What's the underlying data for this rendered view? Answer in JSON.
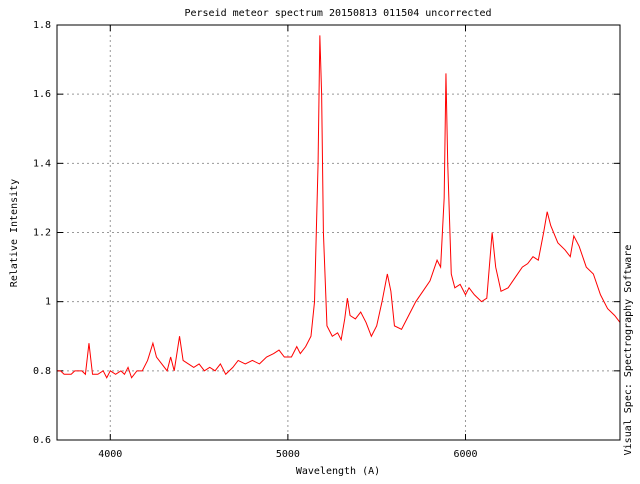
{
  "chart_data": {
    "type": "line",
    "title": "Perseid meteor spectrum 20150813 011504 uncorrected",
    "xlabel": "Wavelength (A)",
    "ylabel": "Relative Intensity",
    "side_note": "Visual Spec: Spectrography Software",
    "xlim": [
      3700,
      6870
    ],
    "xticks": [
      4000,
      5000,
      6000
    ],
    "ylim": [
      0.6,
      1.8
    ],
    "yticks": [
      0.6,
      0.8,
      1,
      1.2,
      1.4,
      1.6,
      1.8
    ],
    "grid": true,
    "x": [
      3700,
      3720,
      3740,
      3780,
      3800,
      3840,
      3860,
      3880,
      3900,
      3930,
      3960,
      3980,
      4000,
      4030,
      4060,
      4080,
      4100,
      4120,
      4150,
      4180,
      4210,
      4240,
      4260,
      4290,
      4320,
      4340,
      4360,
      4390,
      4410,
      4440,
      4470,
      4500,
      4530,
      4560,
      4590,
      4620,
      4650,
      4690,
      4720,
      4760,
      4800,
      4840,
      4880,
      4920,
      4950,
      4980,
      5020,
      5050,
      5070,
      5100,
      5130,
      5150,
      5170,
      5180,
      5190,
      5200,
      5220,
      5250,
      5280,
      5300,
      5320,
      5335,
      5350,
      5380,
      5410,
      5440,
      5470,
      5500,
      5530,
      5560,
      5580,
      5600,
      5640,
      5680,
      5720,
      5760,
      5800,
      5840,
      5860,
      5880,
      5890,
      5900,
      5920,
      5940,
      5970,
      6000,
      6020,
      6050,
      6090,
      6120,
      6150,
      6170,
      6200,
      6240,
      6280,
      6320,
      6350,
      6380,
      6410,
      6440,
      6460,
      6480,
      6520,
      6560,
      6590,
      6610,
      6640,
      6680,
      6720,
      6760,
      6800,
      6840,
      6870
    ],
    "series": [
      {
        "color": "#ff0000",
        "values": [
          0.8,
          0.8,
          0.79,
          0.79,
          0.8,
          0.8,
          0.79,
          0.88,
          0.79,
          0.79,
          0.8,
          0.78,
          0.8,
          0.79,
          0.8,
          0.79,
          0.81,
          0.78,
          0.8,
          0.8,
          0.83,
          0.88,
          0.84,
          0.82,
          0.8,
          0.84,
          0.8,
          0.9,
          0.83,
          0.82,
          0.81,
          0.82,
          0.8,
          0.81,
          0.8,
          0.82,
          0.79,
          0.81,
          0.83,
          0.82,
          0.83,
          0.82,
          0.84,
          0.85,
          0.86,
          0.84,
          0.84,
          0.87,
          0.85,
          0.87,
          0.9,
          1.0,
          1.4,
          1.77,
          1.6,
          1.2,
          0.93,
          0.9,
          0.91,
          0.89,
          0.95,
          1.01,
          0.96,
          0.95,
          0.97,
          0.94,
          0.9,
          0.93,
          1.0,
          1.08,
          1.03,
          0.93,
          0.92,
          0.96,
          1.0,
          1.03,
          1.06,
          1.12,
          1.1,
          1.3,
          1.66,
          1.4,
          1.08,
          1.04,
          1.05,
          1.02,
          1.04,
          1.02,
          1.0,
          1.01,
          1.2,
          1.1,
          1.03,
          1.04,
          1.07,
          1.1,
          1.11,
          1.13,
          1.12,
          1.2,
          1.26,
          1.22,
          1.17,
          1.15,
          1.13,
          1.19,
          1.16,
          1.1,
          1.08,
          1.02,
          0.98,
          0.96,
          0.94
        ]
      }
    ]
  }
}
